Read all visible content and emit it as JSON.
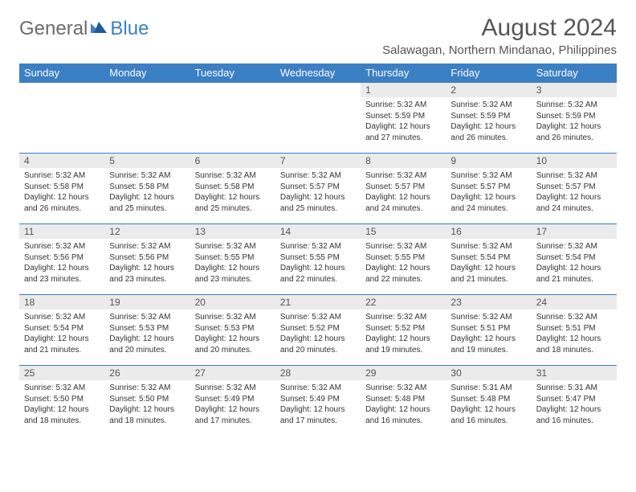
{
  "brand": {
    "general": "General",
    "blue": "Blue"
  },
  "title": "August 2024",
  "location": "Salawagan, Northern Mindanao, Philippines",
  "colors": {
    "header_bg": "#3b7fc4",
    "header_fg": "#ffffff",
    "daynum_bg": "#ebebeb",
    "border": "#3b7fc4",
    "text": "#333333",
    "title": "#555555"
  },
  "weekdays": [
    "Sunday",
    "Monday",
    "Tuesday",
    "Wednesday",
    "Thursday",
    "Friday",
    "Saturday"
  ],
  "weeks": [
    [
      null,
      null,
      null,
      null,
      {
        "n": "1",
        "sr": "5:32 AM",
        "ss": "5:59 PM",
        "dl": "12 hours and 27 minutes."
      },
      {
        "n": "2",
        "sr": "5:32 AM",
        "ss": "5:59 PM",
        "dl": "12 hours and 26 minutes."
      },
      {
        "n": "3",
        "sr": "5:32 AM",
        "ss": "5:59 PM",
        "dl": "12 hours and 26 minutes."
      }
    ],
    [
      {
        "n": "4",
        "sr": "5:32 AM",
        "ss": "5:58 PM",
        "dl": "12 hours and 26 minutes."
      },
      {
        "n": "5",
        "sr": "5:32 AM",
        "ss": "5:58 PM",
        "dl": "12 hours and 25 minutes."
      },
      {
        "n": "6",
        "sr": "5:32 AM",
        "ss": "5:58 PM",
        "dl": "12 hours and 25 minutes."
      },
      {
        "n": "7",
        "sr": "5:32 AM",
        "ss": "5:57 PM",
        "dl": "12 hours and 25 minutes."
      },
      {
        "n": "8",
        "sr": "5:32 AM",
        "ss": "5:57 PM",
        "dl": "12 hours and 24 minutes."
      },
      {
        "n": "9",
        "sr": "5:32 AM",
        "ss": "5:57 PM",
        "dl": "12 hours and 24 minutes."
      },
      {
        "n": "10",
        "sr": "5:32 AM",
        "ss": "5:57 PM",
        "dl": "12 hours and 24 minutes."
      }
    ],
    [
      {
        "n": "11",
        "sr": "5:32 AM",
        "ss": "5:56 PM",
        "dl": "12 hours and 23 minutes."
      },
      {
        "n": "12",
        "sr": "5:32 AM",
        "ss": "5:56 PM",
        "dl": "12 hours and 23 minutes."
      },
      {
        "n": "13",
        "sr": "5:32 AM",
        "ss": "5:55 PM",
        "dl": "12 hours and 23 minutes."
      },
      {
        "n": "14",
        "sr": "5:32 AM",
        "ss": "5:55 PM",
        "dl": "12 hours and 22 minutes."
      },
      {
        "n": "15",
        "sr": "5:32 AM",
        "ss": "5:55 PM",
        "dl": "12 hours and 22 minutes."
      },
      {
        "n": "16",
        "sr": "5:32 AM",
        "ss": "5:54 PM",
        "dl": "12 hours and 21 minutes."
      },
      {
        "n": "17",
        "sr": "5:32 AM",
        "ss": "5:54 PM",
        "dl": "12 hours and 21 minutes."
      }
    ],
    [
      {
        "n": "18",
        "sr": "5:32 AM",
        "ss": "5:54 PM",
        "dl": "12 hours and 21 minutes."
      },
      {
        "n": "19",
        "sr": "5:32 AM",
        "ss": "5:53 PM",
        "dl": "12 hours and 20 minutes."
      },
      {
        "n": "20",
        "sr": "5:32 AM",
        "ss": "5:53 PM",
        "dl": "12 hours and 20 minutes."
      },
      {
        "n": "21",
        "sr": "5:32 AM",
        "ss": "5:52 PM",
        "dl": "12 hours and 20 minutes."
      },
      {
        "n": "22",
        "sr": "5:32 AM",
        "ss": "5:52 PM",
        "dl": "12 hours and 19 minutes."
      },
      {
        "n": "23",
        "sr": "5:32 AM",
        "ss": "5:51 PM",
        "dl": "12 hours and 19 minutes."
      },
      {
        "n": "24",
        "sr": "5:32 AM",
        "ss": "5:51 PM",
        "dl": "12 hours and 18 minutes."
      }
    ],
    [
      {
        "n": "25",
        "sr": "5:32 AM",
        "ss": "5:50 PM",
        "dl": "12 hours and 18 minutes."
      },
      {
        "n": "26",
        "sr": "5:32 AM",
        "ss": "5:50 PM",
        "dl": "12 hours and 18 minutes."
      },
      {
        "n": "27",
        "sr": "5:32 AM",
        "ss": "5:49 PM",
        "dl": "12 hours and 17 minutes."
      },
      {
        "n": "28",
        "sr": "5:32 AM",
        "ss": "5:49 PM",
        "dl": "12 hours and 17 minutes."
      },
      {
        "n": "29",
        "sr": "5:32 AM",
        "ss": "5:48 PM",
        "dl": "12 hours and 16 minutes."
      },
      {
        "n": "30",
        "sr": "5:31 AM",
        "ss": "5:48 PM",
        "dl": "12 hours and 16 minutes."
      },
      {
        "n": "31",
        "sr": "5:31 AM",
        "ss": "5:47 PM",
        "dl": "12 hours and 16 minutes."
      }
    ]
  ],
  "labels": {
    "sunrise": "Sunrise:",
    "sunset": "Sunset:",
    "daylight": "Daylight:"
  }
}
